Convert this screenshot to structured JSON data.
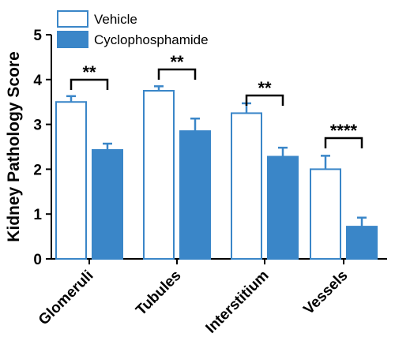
{
  "chart_data": {
    "type": "bar",
    "ylabel": "Kidney Pathology Score",
    "xlabel": "",
    "ylim": [
      0,
      5
    ],
    "yticks": [
      "0",
      "1",
      "2",
      "3",
      "4",
      "5"
    ],
    "categories": [
      "Glomeruli",
      "Tubules",
      "Interstitium",
      "Vessels"
    ],
    "series": [
      {
        "name": "Vehicle",
        "values": [
          3.5,
          3.75,
          3.25,
          2.0
        ],
        "errors": [
          0.13,
          0.1,
          0.22,
          0.3
        ],
        "style": "outline",
        "color": "#3a86c8"
      },
      {
        "name": "Cyclophosphamide",
        "values": [
          2.43,
          2.85,
          2.28,
          0.72
        ],
        "errors": [
          0.14,
          0.28,
          0.2,
          0.2
        ],
        "style": "filled",
        "color": "#3a86c8"
      }
    ],
    "significance": [
      "**",
      "**",
      "**",
      "****"
    ],
    "legend_position": "top-left",
    "grid": false
  },
  "colors": {
    "accent": "#3a86c8",
    "axis": "#000000"
  }
}
